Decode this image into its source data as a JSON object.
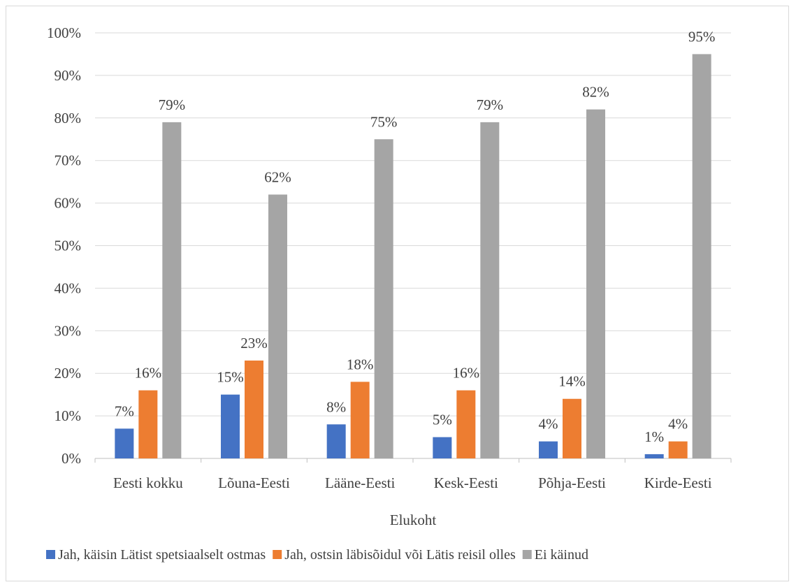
{
  "chart_data": {
    "type": "bar",
    "title": "",
    "xlabel": "Elukoht",
    "ylabel": "",
    "ylim": [
      0,
      100
    ],
    "yticks": [
      "0%",
      "10%",
      "20%",
      "30%",
      "40%",
      "50%",
      "60%",
      "70%",
      "80%",
      "90%",
      "100%"
    ],
    "grid": true,
    "legend_position": "bottom",
    "categories": [
      "Eesti kokku",
      "Lõuna-Eesti",
      "Lääne-Eesti",
      "Kesk-Eesti",
      "Põhja-Eesti",
      "Kirde-Eesti"
    ],
    "series": [
      {
        "name": "Jah, käisin Lätist spetsiaalselt ostmas",
        "color": "#4472C4",
        "values": [
          7,
          15,
          8,
          5,
          4,
          1
        ],
        "labels": [
          "7%",
          "15%",
          "8%",
          "5%",
          "4%",
          "1%"
        ]
      },
      {
        "name": "Jah, ostsin läbisõidul või Lätis reisil olles",
        "color": "#ED7D31",
        "values": [
          16,
          23,
          18,
          16,
          14,
          4
        ],
        "labels": [
          "16%",
          "23%",
          "18%",
          "16%",
          "14%",
          "4%"
        ]
      },
      {
        "name": "Ei käinud",
        "color": "#A5A5A5",
        "values": [
          79,
          62,
          75,
          79,
          82,
          95
        ],
        "labels": [
          "79%",
          "62%",
          "75%",
          "79%",
          "82%",
          "95%"
        ]
      }
    ]
  }
}
